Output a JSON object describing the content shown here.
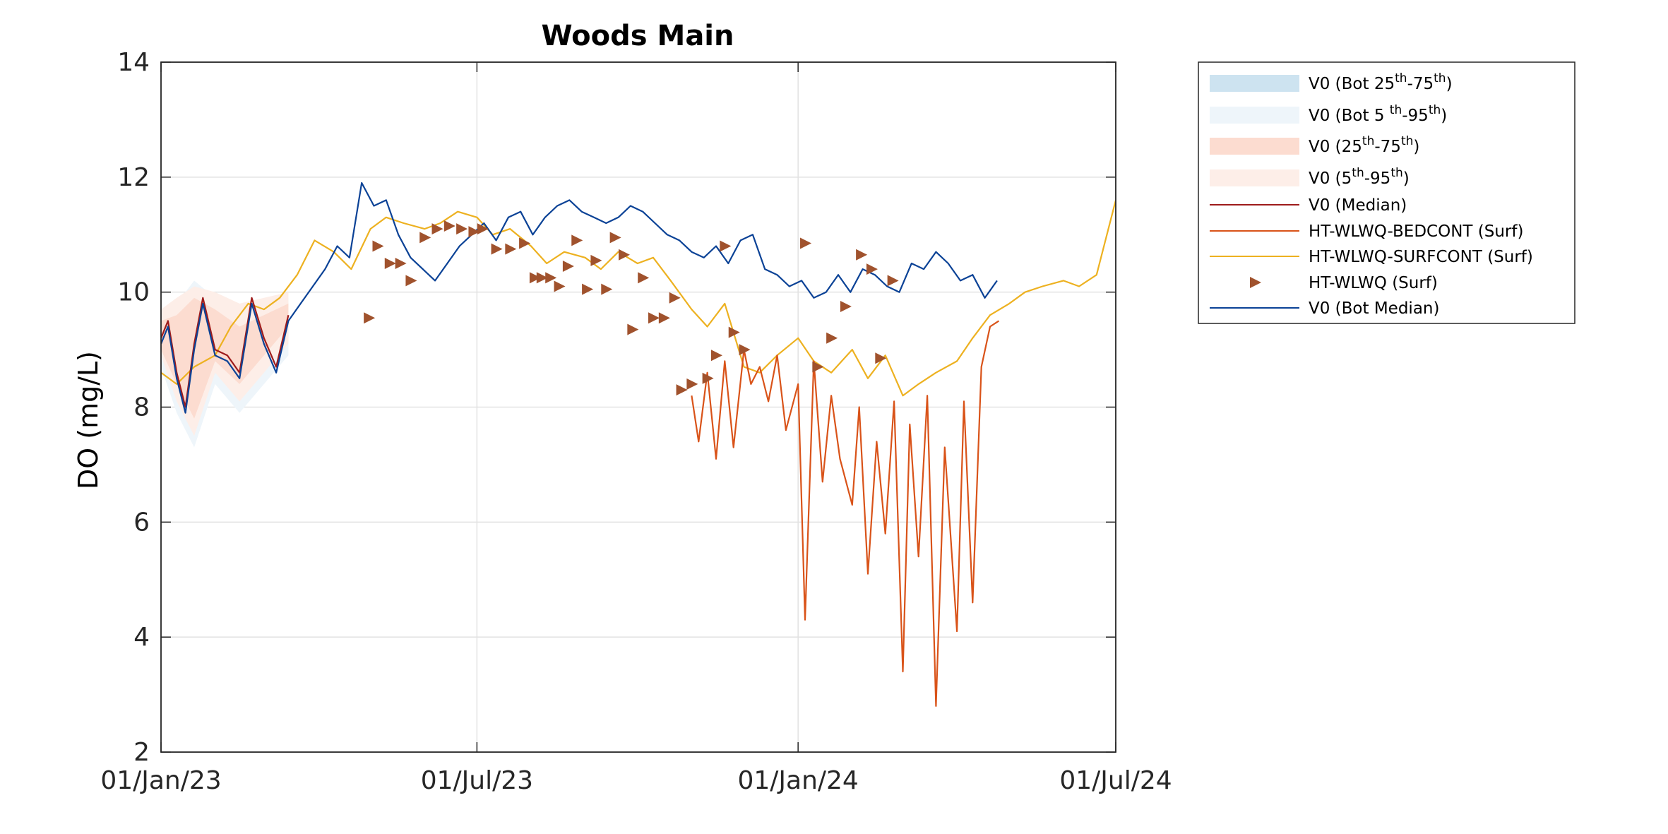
{
  "chart_data": {
    "type": "line",
    "title": "Woods Main",
    "xlabel": "",
    "ylabel": "DO (mg/L)",
    "x_ticks": [
      "01/Jan/23",
      "01/Jul/23",
      "01/Jan/24",
      "01/Jul/24"
    ],
    "x_tick_dates": [
      "2023-01-01",
      "2023-07-01",
      "2024-01-01",
      "2024-07-01"
    ],
    "xlim": [
      "2023-01-01",
      "2024-07-01"
    ],
    "ylim": [
      2,
      14
    ],
    "y_ticks": [
      2,
      4,
      6,
      8,
      10,
      12,
      14
    ],
    "grid": true,
    "legend_position": "outside-right",
    "legend": [
      {
        "label": "V0 (Bot 25th-75th)",
        "base": "V0 (Bot 25",
        "sup1": "th",
        "mid": "-75",
        "sup2": "th",
        "end": ")",
        "kind": "band",
        "color": "#cde3f0"
      },
      {
        "label": "V0 (Bot 5th-95th)",
        "base": "V0 (Bot 5 ",
        "sup1": "th",
        "mid": "-95",
        "sup2": "th",
        "end": ")",
        "kind": "band",
        "color": "#eef5fa"
      },
      {
        "label": "V0 (25th-75th)",
        "base": "V0 (25",
        "sup1": "th",
        "mid": "-75",
        "sup2": "th",
        "end": ")",
        "kind": "band",
        "color": "#fcdcd0"
      },
      {
        "label": "V0 (5th-95th)",
        "base": "V0 (5",
        "sup1": "th",
        "mid": "-95",
        "sup2": "th",
        "end": ")",
        "kind": "band",
        "color": "#fdeee8"
      },
      {
        "label": "V0 (Median)",
        "kind": "line",
        "color": "#9e1b1b"
      },
      {
        "label": "HT-WLWQ-BEDCONT (Surf)",
        "kind": "line",
        "color": "#d95319"
      },
      {
        "label": "HT-WLWQ-SURFCONT (Surf)",
        "kind": "line",
        "color": "#edb120"
      },
      {
        "label": "HT-WLWQ (Surf)",
        "kind": "marker",
        "color": "#a0522d"
      },
      {
        "label": "V0 (Bot Median)",
        "kind": "line",
        "color": "#0b4296"
      }
    ],
    "series": [
      {
        "name": "V0 (Bot Median)",
        "color": "#0b4296",
        "x": [
          "2023-01-01",
          "2023-01-05",
          "2023-01-10",
          "2023-01-15",
          "2023-01-20",
          "2023-01-25",
          "2023-02-01",
          "2023-02-08",
          "2023-02-15",
          "2023-02-22",
          "2023-03-01",
          "2023-03-08",
          "2023-03-15",
          "2023-03-22",
          "2023-03-29",
          "2023-04-05",
          "2023-04-12",
          "2023-04-19",
          "2023-04-26",
          "2023-05-03",
          "2023-05-10",
          "2023-05-17",
          "2023-05-24",
          "2023-05-31",
          "2023-06-07",
          "2023-06-14",
          "2023-06-21",
          "2023-06-28",
          "2023-07-05",
          "2023-07-12",
          "2023-07-19",
          "2023-07-26",
          "2023-08-02",
          "2023-08-09",
          "2023-08-16",
          "2023-08-23",
          "2023-08-30",
          "2023-09-06",
          "2023-09-13",
          "2023-09-20",
          "2023-09-27",
          "2023-10-04",
          "2023-10-11",
          "2023-10-18",
          "2023-10-25",
          "2023-11-01",
          "2023-11-08",
          "2023-11-15",
          "2023-11-22",
          "2023-11-29",
          "2023-12-06",
          "2023-12-13",
          "2023-12-20",
          "2023-12-27",
          "2024-01-03",
          "2024-01-10",
          "2024-01-17",
          "2024-01-24",
          "2024-01-31",
          "2024-02-07",
          "2024-02-14",
          "2024-02-21",
          "2024-02-28",
          "2024-03-06",
          "2024-03-13",
          "2024-03-20",
          "2024-03-27",
          "2024-04-03",
          "2024-04-10",
          "2024-04-17",
          "2024-04-24"
        ],
        "y": [
          9.1,
          9.4,
          8.5,
          7.9,
          9.0,
          9.8,
          8.9,
          8.8,
          8.5,
          9.8,
          9.1,
          8.6,
          9.5,
          9.8,
          10.1,
          10.4,
          10.8,
          10.6,
          11.9,
          11.5,
          11.6,
          11.0,
          10.6,
          10.4,
          10.2,
          10.5,
          10.8,
          11.0,
          11.2,
          10.9,
          11.3,
          11.4,
          11.0,
          11.3,
          11.5,
          11.6,
          11.4,
          11.3,
          11.2,
          11.3,
          11.5,
          11.4,
          11.2,
          11.0,
          10.9,
          10.7,
          10.6,
          10.8,
          10.5,
          10.9,
          11.0,
          10.4,
          10.3,
          10.1,
          10.2,
          9.9,
          10.0,
          10.3,
          10.0,
          10.4,
          10.3,
          10.1,
          10.0,
          10.5,
          10.4,
          10.7,
          10.5,
          10.2,
          10.3,
          9.9,
          10.2
        ]
      },
      {
        "name": "HT-WLWQ-SURFCONT (Surf)",
        "color": "#edb120",
        "x": [
          "2023-01-01",
          "2023-01-10",
          "2023-01-20",
          "2023-02-01",
          "2023-02-10",
          "2023-02-20",
          "2023-03-01",
          "2023-03-10",
          "2023-03-20",
          "2023-03-30",
          "2023-04-10",
          "2023-04-20",
          "2023-05-01",
          "2023-05-10",
          "2023-05-20",
          "2023-06-01",
          "2023-06-10",
          "2023-06-20",
          "2023-07-01",
          "2023-07-10",
          "2023-07-20",
          "2023-08-01",
          "2023-08-10",
          "2023-08-20",
          "2023-09-01",
          "2023-09-10",
          "2023-09-20",
          "2023-10-01",
          "2023-10-10",
          "2023-10-20",
          "2023-11-01",
          "2023-11-10",
          "2023-11-20",
          "2023-12-01",
          "2023-12-10",
          "2023-12-20",
          "2024-01-01",
          "2024-01-10",
          "2024-01-20",
          "2024-02-01",
          "2024-02-10",
          "2024-02-20",
          "2024-03-01",
          "2024-03-10",
          "2024-03-20",
          "2024-04-01",
          "2024-04-10",
          "2024-04-20",
          "2024-05-01",
          "2024-05-10",
          "2024-05-20",
          "2024-06-01",
          "2024-06-10",
          "2024-06-20",
          "2024-07-01"
        ],
        "y": [
          8.6,
          8.4,
          8.7,
          8.9,
          9.4,
          9.8,
          9.7,
          9.9,
          10.3,
          10.9,
          10.7,
          10.4,
          11.1,
          11.3,
          11.2,
          11.1,
          11.2,
          11.4,
          11.3,
          11.0,
          11.1,
          10.8,
          10.5,
          10.7,
          10.6,
          10.4,
          10.7,
          10.5,
          10.6,
          10.2,
          9.7,
          9.4,
          9.8,
          8.7,
          8.6,
          8.9,
          9.2,
          8.8,
          8.6,
          9.0,
          8.5,
          8.9,
          8.2,
          8.4,
          8.6,
          8.8,
          9.2,
          9.6,
          9.8,
          10.0,
          10.1,
          10.2,
          10.1,
          10.3,
          11.6
        ]
      },
      {
        "name": "HT-WLWQ-BEDCONT (Surf)",
        "color": "#d95319",
        "x": [
          "2023-11-01",
          "2023-11-05",
          "2023-11-10",
          "2023-11-15",
          "2023-11-20",
          "2023-11-25",
          "2023-12-01",
          "2023-12-05",
          "2023-12-10",
          "2023-12-15",
          "2023-12-20",
          "2023-12-25",
          "2024-01-01",
          "2024-01-05",
          "2024-01-10",
          "2024-01-15",
          "2024-01-20",
          "2024-01-25",
          "2024-02-01",
          "2024-02-05",
          "2024-02-10",
          "2024-02-15",
          "2024-02-20",
          "2024-02-25",
          "2024-03-01",
          "2024-03-05",
          "2024-03-10",
          "2024-03-15",
          "2024-03-20",
          "2024-03-25",
          "2024-04-01",
          "2024-04-05",
          "2024-04-10",
          "2024-04-15",
          "2024-04-20",
          "2024-04-25"
        ],
        "y": [
          8.2,
          7.4,
          8.6,
          7.1,
          8.8,
          7.3,
          9.0,
          8.4,
          8.7,
          8.1,
          8.9,
          7.6,
          8.4,
          4.3,
          8.8,
          6.7,
          8.2,
          7.1,
          6.3,
          8.0,
          5.1,
          7.4,
          5.8,
          8.1,
          3.4,
          7.7,
          5.4,
          8.2,
          2.8,
          7.3,
          4.1,
          8.1,
          4.6,
          8.7,
          9.4,
          9.5
        ]
      },
      {
        "name": "V0 (Median)",
        "color": "#9e1b1b",
        "x": [
          "2023-01-01",
          "2023-01-05",
          "2023-01-10",
          "2023-01-15",
          "2023-01-20",
          "2023-01-25",
          "2023-02-01",
          "2023-02-08",
          "2023-02-15",
          "2023-02-22",
          "2023-03-01",
          "2023-03-08",
          "2023-03-15"
        ],
        "y": [
          9.2,
          9.5,
          8.6,
          8.0,
          9.1,
          9.9,
          9.0,
          8.9,
          8.6,
          9.9,
          9.2,
          8.7,
          9.6
        ]
      }
    ],
    "markers": {
      "name": "HT-WLWQ (Surf)",
      "color": "#a0522d",
      "x": [
        "2023-04-30",
        "2023-05-05",
        "2023-05-12",
        "2023-05-18",
        "2023-05-24",
        "2023-06-01",
        "2023-06-08",
        "2023-06-15",
        "2023-06-22",
        "2023-06-29",
        "2023-07-04",
        "2023-07-12",
        "2023-07-20",
        "2023-07-28",
        "2023-08-03",
        "2023-08-07",
        "2023-08-12",
        "2023-08-17",
        "2023-08-22",
        "2023-08-27",
        "2023-09-02",
        "2023-09-07",
        "2023-09-13",
        "2023-09-18",
        "2023-09-23",
        "2023-09-28",
        "2023-10-04",
        "2023-10-10",
        "2023-10-16",
        "2023-10-22",
        "2023-10-26",
        "2023-11-01",
        "2023-11-10",
        "2023-11-15",
        "2023-11-20",
        "2023-11-25",
        "2023-12-01",
        "2024-01-05",
        "2024-01-12",
        "2024-01-20",
        "2024-01-28",
        "2024-02-06",
        "2024-02-12",
        "2024-02-17",
        "2024-02-24"
      ],
      "y": [
        9.55,
        10.8,
        10.5,
        10.5,
        10.2,
        10.95,
        11.1,
        11.15,
        11.1,
        11.05,
        11.1,
        10.75,
        10.75,
        10.85,
        10.25,
        10.25,
        10.25,
        10.1,
        10.45,
        10.9,
        10.05,
        10.55,
        10.05,
        10.95,
        10.65,
        9.35,
        10.25,
        9.55,
        9.55,
        9.9,
        8.3,
        8.4,
        8.5,
        8.9,
        10.8,
        9.3,
        9.0,
        10.85,
        8.7,
        9.2,
        9.75,
        10.65,
        10.4,
        8.85,
        10.2
      ]
    },
    "bands": [
      {
        "name": "V0 (Bot 5th-95th)",
        "color": "#eef5fa",
        "x": [
          "2023-01-01",
          "2023-01-10",
          "2023-01-20",
          "2023-02-01",
          "2023-02-15",
          "2023-03-01",
          "2023-03-15"
        ],
        "lo": [
          8.7,
          7.9,
          7.3,
          8.4,
          7.9,
          8.4,
          8.9
        ],
        "hi": [
          9.6,
          9.8,
          10.2,
          9.9,
          9.7,
          9.8,
          9.9
        ]
      },
      {
        "name": "V0 (Bot 25th-75th)",
        "color": "#cde3f0",
        "x": [
          "2023-01-01",
          "2023-01-10",
          "2023-01-20",
          "2023-02-01",
          "2023-02-15",
          "2023-03-01",
          "2023-03-15"
        ],
        "lo": [
          8.9,
          8.2,
          7.6,
          8.6,
          8.2,
          8.7,
          9.2
        ],
        "hi": [
          9.4,
          9.5,
          9.9,
          9.6,
          9.3,
          9.5,
          9.7
        ]
      },
      {
        "name": "V0 (5th-95th)",
        "color": "#fdeee8",
        "x": [
          "2023-01-01",
          "2023-01-10",
          "2023-01-20",
          "2023-02-01",
          "2023-02-15",
          "2023-03-01",
          "2023-03-15"
        ],
        "lo": [
          8.9,
          8.1,
          7.5,
          8.6,
          8.1,
          8.6,
          9.1
        ],
        "hi": [
          9.7,
          9.9,
          10.1,
          10.0,
          9.8,
          9.9,
          10.0
        ]
      },
      {
        "name": "V0 (25th-75th)",
        "color": "#fcdcd0",
        "x": [
          "2023-01-01",
          "2023-01-10",
          "2023-01-20",
          "2023-02-01",
          "2023-02-15",
          "2023-03-01",
          "2023-03-15"
        ],
        "lo": [
          9.0,
          8.4,
          7.8,
          8.8,
          8.4,
          8.9,
          9.4
        ],
        "hi": [
          9.5,
          9.6,
          9.9,
          9.7,
          9.4,
          9.6,
          9.8
        ]
      }
    ]
  }
}
